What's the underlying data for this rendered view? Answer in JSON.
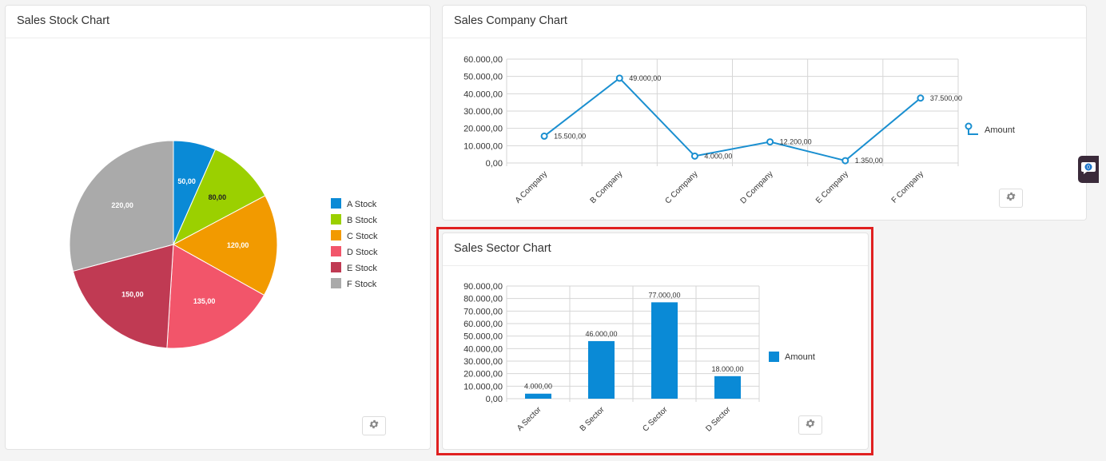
{
  "stock": {
    "title": "Sales Stock Chart",
    "chart_data": {
      "type": "pie",
      "categories": [
        "A Stock",
        "B Stock",
        "C Stock",
        "D Stock",
        "E Stock",
        "F Stock"
      ],
      "values": [
        50,
        80,
        120,
        135,
        150,
        220
      ],
      "value_labels": [
        "50,00",
        "80,00",
        "120,00",
        "135,00",
        "150,00",
        "220,00"
      ],
      "colors": [
        "#0a8ad6",
        "#9bd000",
        "#f29a00",
        "#f2556a",
        "#c03a53",
        "#aaaaaa"
      ],
      "legend": "right"
    }
  },
  "company": {
    "title": "Sales Company Chart",
    "chart_data": {
      "type": "line",
      "categories": [
        "A Company",
        "B Company",
        "C Company",
        "D Company",
        "E Company",
        "F Company"
      ],
      "series": [
        {
          "name": "Amount",
          "values": [
            15500,
            49000,
            4000,
            12200,
            1350,
            37500
          ],
          "value_labels": [
            "15.500,00",
            "49.000,00",
            "4.000,00",
            "12.200,00",
            "1.350,00",
            "37.500,00"
          ],
          "color": "#1a8fd0"
        }
      ],
      "ylim": [
        0,
        60000
      ],
      "yticks": [
        "0,00",
        "10.000,00",
        "20.000,00",
        "30.000,00",
        "40.000,00",
        "50.000,00",
        "60.000,00"
      ],
      "grid": true,
      "legend": "right"
    }
  },
  "sector": {
    "title": "Sales Sector Chart",
    "chart_data": {
      "type": "bar",
      "categories": [
        "A Sector",
        "B Sector",
        "C Sector",
        "D Sector"
      ],
      "series": [
        {
          "name": "Amount",
          "values": [
            4000,
            46000,
            77000,
            18000
          ],
          "value_labels": [
            "4.000,00",
            "46.000,00",
            "77.000,00",
            "18.000,00"
          ],
          "color": "#0a8ad6"
        }
      ],
      "ylim": [
        0,
        90000
      ],
      "yticks": [
        "0,00",
        "10.000,00",
        "20.000,00",
        "30.000,00",
        "40.000,00",
        "50.000,00",
        "60.000,00",
        "70.000,00",
        "80.000,00",
        "90.000,00"
      ],
      "grid": true,
      "legend": "right"
    }
  },
  "chat_widget": {
    "badge": "0"
  },
  "icons": {
    "settings": "gear-icon",
    "chat": "chat-bubble-icon"
  }
}
